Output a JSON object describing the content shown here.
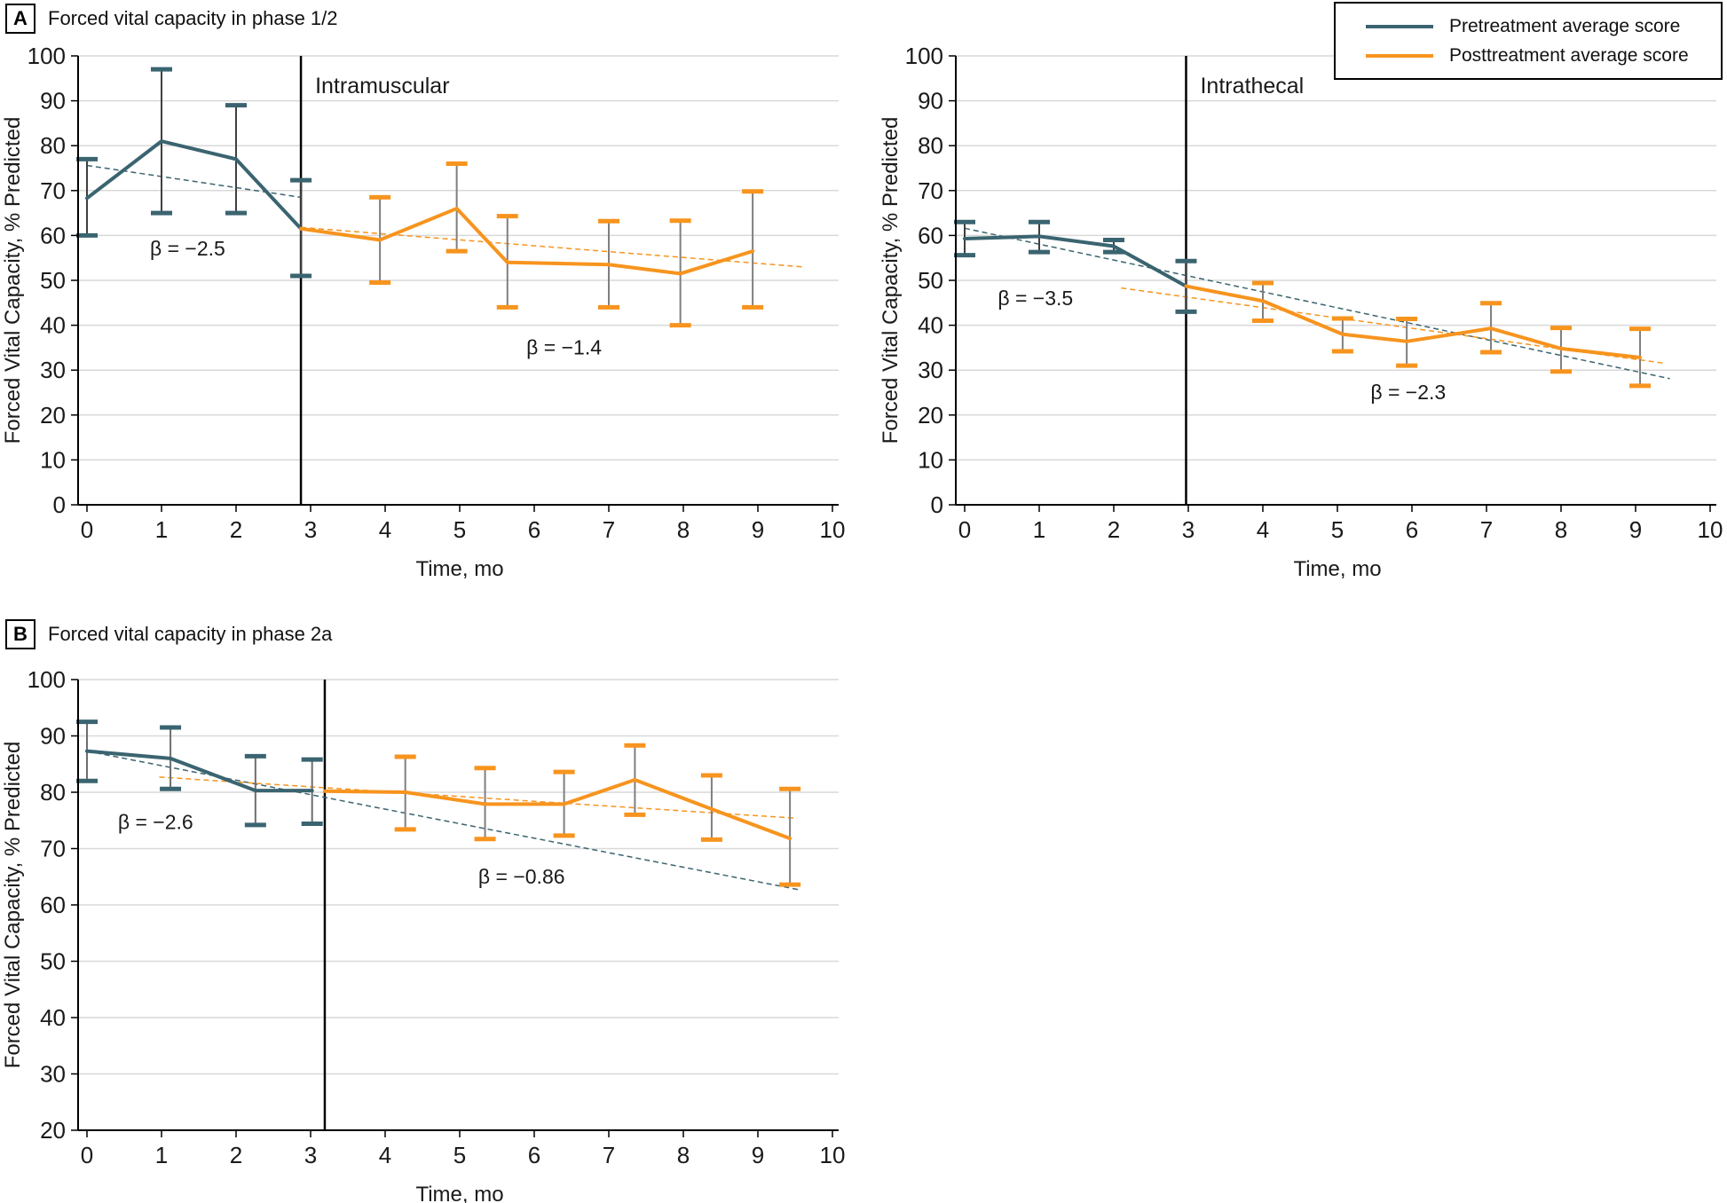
{
  "panels": [
    {
      "tag": "A",
      "title": "Forced vital capacity in phase 1/2"
    },
    {
      "tag": "B",
      "title": "Forced vital capacity in phase 2a"
    }
  ],
  "legend": {
    "position": "top-right",
    "items": [
      {
        "label": "Pretreatment average score",
        "color": "#3A6470"
      },
      {
        "label": "Posttreatment average score",
        "color": "#F7941E"
      }
    ]
  },
  "colors": {
    "pretreatment": "#3A6470",
    "posttreatment": "#F7941E",
    "grid": "#D9D9D9",
    "axis": "#000000",
    "divider": "#000000",
    "text": "#1A1A1A",
    "error_stem_dark": "#3F3F3F",
    "error_stem_gray": "#7F7F7F"
  },
  "chart_data": [
    {
      "id": "intramuscular",
      "type": "line",
      "panel": "A",
      "region_label": "Intramuscular",
      "xlabel": "Time, mo",
      "ylabel": "Forced Vital Capacity, % Predicted",
      "xlim": [
        0,
        10
      ],
      "ylim": [
        0,
        100
      ],
      "xticks": [
        0,
        1,
        2,
        3,
        4,
        5,
        6,
        7,
        8,
        9,
        10
      ],
      "yticks": [
        0,
        10,
        20,
        30,
        40,
        50,
        60,
        70,
        80,
        90,
        100
      ],
      "grid": "horizontal",
      "divider_x": 2.87,
      "annotations": [
        {
          "text": "β = −2.5",
          "x": 1.35,
          "y": 55.5
        },
        {
          "text": "β = −1.4",
          "x": 6.4,
          "y": 33.5
        }
      ],
      "series": [
        {
          "id": "pretreatment",
          "name": "Pretreatment average score",
          "color": "#3A6470",
          "stem": "#3F3F3F",
          "points": [
            {
              "x": 0,
              "y": 68.3,
              "lo": 60,
              "hi": 77
            },
            {
              "x": 1,
              "y": 81,
              "lo": 65,
              "hi": 97
            },
            {
              "x": 2,
              "y": 77,
              "lo": 65,
              "hi": 89
            },
            {
              "x": 2.87,
              "y": 61.5,
              "lo": 51,
              "hi": 72.3
            }
          ]
        },
        {
          "id": "posttreatment",
          "name": "Posttreatment average score",
          "color": "#F7941E",
          "stem": "#7F7F7F",
          "points": [
            {
              "x": 2.87,
              "y": 61.5,
              "lo": null,
              "hi": null
            },
            {
              "x": 3.93,
              "y": 59,
              "lo": 49.5,
              "hi": 68.5
            },
            {
              "x": 4.96,
              "y": 66,
              "lo": 56.5,
              "hi": 76
            },
            {
              "x": 5.64,
              "y": 54,
              "lo": 44,
              "hi": 64.3
            },
            {
              "x": 7.0,
              "y": 53.5,
              "lo": 44,
              "hi": 63.2
            },
            {
              "x": 7.96,
              "y": 51.5,
              "lo": 40,
              "hi": 63.3
            },
            {
              "x": 8.93,
              "y": 56.5,
              "lo": 44,
              "hi": 69.8
            }
          ]
        }
      ],
      "trend_lines": [
        {
          "series": "pretreatment",
          "color": "#3A6470",
          "x1": 0,
          "y1": 75.6,
          "x2": 2.87,
          "y2": 68.5
        },
        {
          "series": "posttreatment",
          "color": "#F7941E",
          "x1": 2.87,
          "y1": 61.8,
          "x2": 9.6,
          "y2": 53
        }
      ]
    },
    {
      "id": "intrathecal",
      "type": "line",
      "panel": "A",
      "region_label": "Intrathecal",
      "xlabel": "Time, mo",
      "ylabel": "Forced Vital Capacity, % Predicted",
      "xlim": [
        0,
        10
      ],
      "ylim": [
        0,
        100
      ],
      "xticks": [
        0,
        1,
        2,
        3,
        4,
        5,
        6,
        7,
        8,
        9,
        10
      ],
      "yticks": [
        0,
        10,
        20,
        30,
        40,
        50,
        60,
        70,
        80,
        90,
        100
      ],
      "grid": "horizontal",
      "divider_x": 2.97,
      "annotations": [
        {
          "text": "β = −3.5",
          "x": 0.95,
          "y": 44.5
        },
        {
          "text": "β = −2.3",
          "x": 5.95,
          "y": 23.5
        }
      ],
      "series": [
        {
          "id": "pretreatment",
          "name": "Pretreatment average score",
          "color": "#3A6470",
          "stem": "#3F3F3F",
          "points": [
            {
              "x": 0,
              "y": 59.3,
              "lo": 55.6,
              "hi": 63
            },
            {
              "x": 1,
              "y": 59.8,
              "lo": 56.3,
              "hi": 63
            },
            {
              "x": 2,
              "y": 57.6,
              "lo": 56.3,
              "hi": 59
            },
            {
              "x": 2.97,
              "y": 48.7,
              "lo": 43,
              "hi": 54.3
            }
          ]
        },
        {
          "id": "posttreatment",
          "name": "Posttreatment average score",
          "color": "#F7941E",
          "stem": "#7F7F7F",
          "points": [
            {
              "x": 2.97,
              "y": 48.7,
              "lo": null,
              "hi": null
            },
            {
              "x": 4.0,
              "y": 45.4,
              "lo": 41,
              "hi": 49.4
            },
            {
              "x": 5.07,
              "y": 38,
              "lo": 34.2,
              "hi": 41.5
            },
            {
              "x": 5.93,
              "y": 36.4,
              "lo": 31,
              "hi": 41.4
            },
            {
              "x": 7.06,
              "y": 39.3,
              "lo": 34,
              "hi": 44.9
            },
            {
              "x": 8.0,
              "y": 34.8,
              "lo": 29.7,
              "hi": 39.4
            },
            {
              "x": 9.06,
              "y": 32.8,
              "lo": 26.5,
              "hi": 39.2
            }
          ]
        }
      ],
      "trend_lines": [
        {
          "series": "pretreatment",
          "color": "#3A6470",
          "x1": 0,
          "y1": 61.6,
          "x2": 9.46,
          "y2": 28.1
        },
        {
          "series": "posttreatment",
          "color": "#F7941E",
          "x1": 2.1,
          "y1": 48.3,
          "x2": 9.4,
          "y2": 31.5
        }
      ]
    },
    {
      "id": "phase-2a",
      "type": "line",
      "panel": "B",
      "region_label": null,
      "xlabel": "Time, mo",
      "ylabel": "Forced Vital Capacity, % Predicted",
      "xlim": [
        0,
        10
      ],
      "ylim": [
        20,
        100
      ],
      "xticks": [
        0,
        1,
        2,
        3,
        4,
        5,
        6,
        7,
        8,
        9,
        10
      ],
      "yticks": [
        20,
        30,
        40,
        50,
        60,
        70,
        80,
        90,
        100
      ],
      "grid": "horizontal",
      "divider_x": 3.19,
      "annotations": [
        {
          "text": "β = −2.6",
          "x": 0.92,
          "y": 73.5
        },
        {
          "text": "β = −0.86",
          "x": 5.83,
          "y": 63.8
        }
      ],
      "series": [
        {
          "id": "pretreatment",
          "name": "Pretreatment average score",
          "color": "#3A6470",
          "stem": "#6E6E6E",
          "points": [
            {
              "x": 0,
              "y": 87.3,
              "lo": 82,
              "hi": 92.5
            },
            {
              "x": 1.12,
              "y": 86,
              "lo": 80.6,
              "hi": 91.5
            },
            {
              "x": 2.26,
              "y": 80.3,
              "lo": 74.2,
              "hi": 86.4
            },
            {
              "x": 3.02,
              "y": 80.3,
              "lo": 74.4,
              "hi": 85.8
            }
          ]
        },
        {
          "id": "posttreatment",
          "name": "Posttreatment average score",
          "color": "#F7941E",
          "stem": "#7F7F7F",
          "points": [
            {
              "x": 3.19,
              "y": 80.2,
              "lo": null,
              "hi": null
            },
            {
              "x": 4.27,
              "y": 80,
              "lo": 73.4,
              "hi": 86.3
            },
            {
              "x": 5.34,
              "y": 77.9,
              "lo": 71.7,
              "hi": 84.3
            },
            {
              "x": 6.4,
              "y": 77.9,
              "lo": 72.3,
              "hi": 83.6
            },
            {
              "x": 7.35,
              "y": 82.2,
              "lo": 76,
              "hi": 88.3
            },
            {
              "x": 8.38,
              "y": 77,
              "lo": 71.6,
              "hi": 83
            },
            {
              "x": 9.43,
              "y": 71.8,
              "lo": 63.6,
              "hi": 80.6
            }
          ]
        }
      ],
      "trend_lines": [
        {
          "series": "pretreatment",
          "color": "#3A6470",
          "x1": 0,
          "y1": 87.3,
          "x2": 9.55,
          "y2": 62.7
        },
        {
          "series": "posttreatment",
          "color": "#F7941E",
          "x1": 0.97,
          "y1": 82.7,
          "x2": 9.5,
          "y2": 75.4
        }
      ]
    }
  ]
}
